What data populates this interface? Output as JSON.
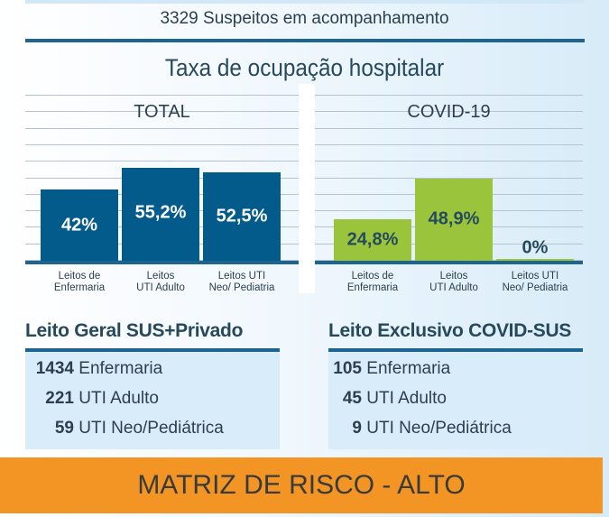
{
  "header": {
    "suspects": "3329 Suspeitos em acompanhamento",
    "title": "Taxa de ocupação hospitalar"
  },
  "chart_data": [
    {
      "type": "bar",
      "title": "TOTAL",
      "categories": [
        "Leitos de Enfermaria",
        "Leitos UTI Adulto",
        "Leitos UTI Neo/ Pediatria"
      ],
      "category_lines": [
        [
          "Leitos de",
          "Enfermaria"
        ],
        [
          "Leitos",
          "UTI Adulto"
        ],
        [
          "Leitos UTI",
          "Neo/ Pediatria"
        ]
      ],
      "values": [
        42,
        55.2,
        52.5
      ],
      "labels": [
        "42%",
        "55,2%",
        "52,5%"
      ],
      "color": "#035b8c",
      "label_color": "#ffffff",
      "ylim": [
        0,
        100
      ],
      "grid": true
    },
    {
      "type": "bar",
      "title": "COVID-19",
      "categories": [
        "Leitos de Enfermaria",
        "Leitos UTI Adulto",
        "Leitos UTI Neo/ Pediatria"
      ],
      "category_lines": [
        [
          "Leitos de",
          "Enfermaria"
        ],
        [
          "Leitos",
          "UTI Adulto"
        ],
        [
          "Leitos UTI",
          "Neo/ Pediatria"
        ]
      ],
      "values": [
        24.8,
        48.9,
        0
      ],
      "labels": [
        "24,8%",
        "48,9%",
        "0%"
      ],
      "color": "#9ac43b",
      "label_color": "#264a5e",
      "ylim": [
        0,
        100
      ],
      "grid": true
    }
  ],
  "beds": [
    {
      "title": "Leito Geral SUS+Privado",
      "rows": [
        {
          "count": "1434",
          "label": "Enfermaria"
        },
        {
          "count": "221",
          "label": "UTI Adulto"
        },
        {
          "count": "59",
          "label": "UTI Neo/Pediátrica"
        }
      ]
    },
    {
      "title": "Leito Exclusivo COVID-SUS",
      "rows": [
        {
          "count": "105",
          "label": "Enfermaria"
        },
        {
          "count": "45",
          "label": "UTI Adulto"
        },
        {
          "count": "9",
          "label": "UTI Neo/Pediátrica"
        }
      ]
    }
  ],
  "risk": {
    "label": "MATRIZ DE RISCO - ALTO",
    "color": "#f39525"
  }
}
